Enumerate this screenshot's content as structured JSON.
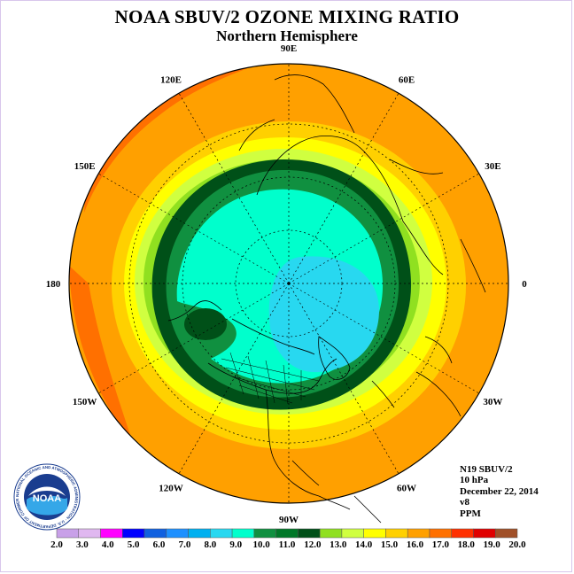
{
  "title": "NOAA SBUV/2 OZONE MIXING RATIO",
  "subtitle": "Northern Hemisphere",
  "longitude_labels": [
    {
      "label": "90E",
      "lon": 90
    },
    {
      "label": "60E",
      "lon": 60
    },
    {
      "label": "30E",
      "lon": 30
    },
    {
      "label": "0",
      "lon": 0
    },
    {
      "label": "30W",
      "lon": -30
    },
    {
      "label": "60W",
      "lon": -60
    },
    {
      "label": "90W",
      "lon": -90
    },
    {
      "label": "120W",
      "lon": -120
    },
    {
      "label": "150W",
      "lon": -150
    },
    {
      "label": "180",
      "lon": 180
    },
    {
      "label": "150E",
      "lon": 150
    },
    {
      "label": "120E",
      "lon": 120
    }
  ],
  "info": {
    "satellite": "N19 SBUV/2",
    "pressure": "10 hPa",
    "date": "December 22, 2014",
    "version": "v8",
    "units": "PPM"
  },
  "logo": {
    "text": "NOAA",
    "ring_text": "NATIONAL OCEANIC AND ATMOSPHERIC ADMINISTRATION · U.S. DEPARTMENT OF COMMERCE"
  },
  "colorbar": {
    "labels": [
      "2.0",
      "3.0",
      "4.0",
      "5.0",
      "6.0",
      "7.0",
      "8.0",
      "9.0",
      "10.0",
      "11.0",
      "12.0",
      "13.0",
      "14.0",
      "15.0",
      "16.0",
      "17.0",
      "18.0",
      "19.0",
      "20.0"
    ],
    "colors": [
      "#c8a0e8",
      "#e0b8f0",
      "#ff00ff",
      "#0000ff",
      "#1060e0",
      "#1e90ff",
      "#00b0f0",
      "#28d8f0",
      "#00ffcc",
      "#109040",
      "#007828",
      "#005018",
      "#90e020",
      "#d0ff40",
      "#ffff00",
      "#ffd000",
      "#ffa000",
      "#ff7000",
      "#ff3000",
      "#e00000",
      "#a05028"
    ]
  },
  "map_data": {
    "projection": "north-polar-stereographic",
    "contour_bands_ppm": [
      {
        "range": "8.0-9.0",
        "color": "#28d8f0",
        "region": "polar core over Arctic / Europe"
      },
      {
        "range": "9.0-10.0",
        "color": "#00ffcc",
        "region": "inner vortex ring"
      },
      {
        "range": "10.0-11.0",
        "color": "#109040",
        "region": "vortex edge"
      },
      {
        "range": "11.0-12.0",
        "color": "#005018",
        "region": "vortex edge (dark)"
      },
      {
        "range": "12.0-13.0",
        "color": "#90e020",
        "region": "mid latitudes"
      },
      {
        "range": "13.0-14.0",
        "color": "#d0ff40",
        "region": "mid latitudes"
      },
      {
        "range": "14.0-15.0",
        "color": "#ffff00",
        "region": "subtropics"
      },
      {
        "range": "15.0-16.0",
        "color": "#ffd000",
        "region": "subtropics"
      },
      {
        "range": "16.0-17.0",
        "color": "#ffa000",
        "region": "tropics"
      },
      {
        "range": "17.0-18.0",
        "color": "#ff7000",
        "region": "tropical edge"
      }
    ]
  }
}
